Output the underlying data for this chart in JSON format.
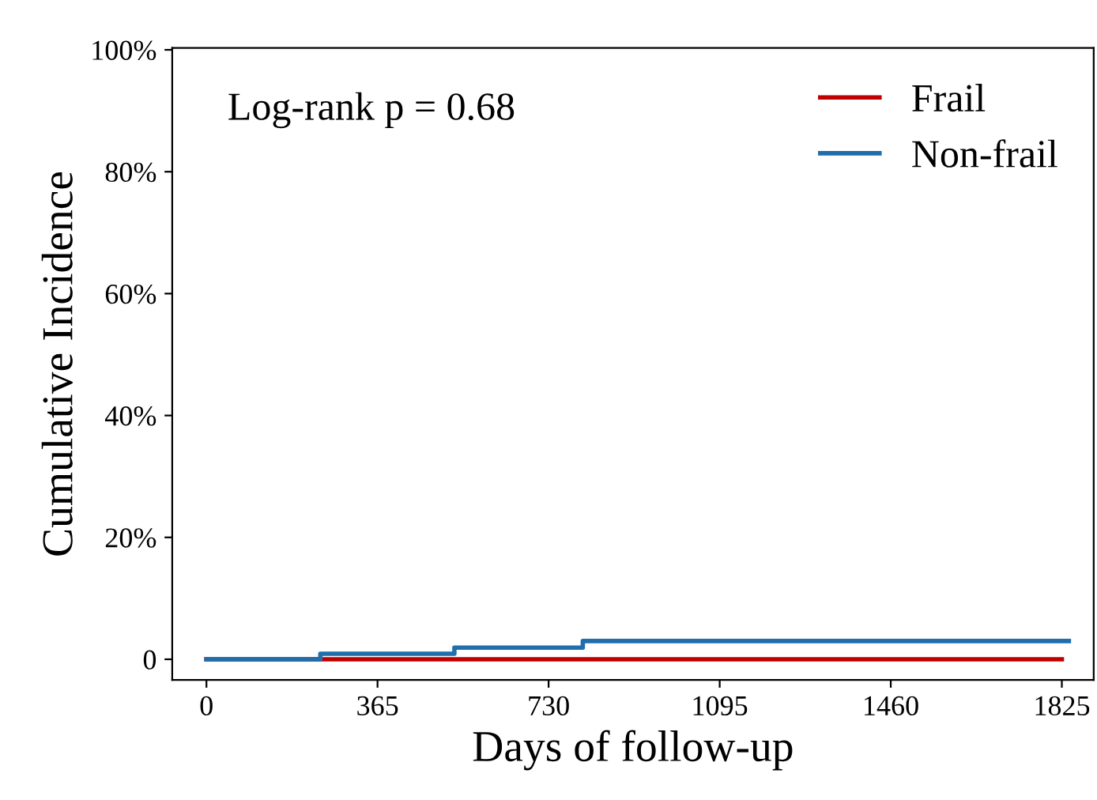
{
  "chart_data": {
    "type": "step",
    "xlabel": "Days of follow-up",
    "ylabel": "Cumulative Incidence",
    "series": [
      {
        "name": "Frail",
        "color": "#c00000",
        "x": [
          0,
          1825
        ],
        "values": [
          0,
          0
        ]
      },
      {
        "name": "Non-frail",
        "color": "#1f6fad",
        "x": [
          0,
          243,
          529,
          803,
          1840
        ],
        "values": [
          0,
          0.9,
          1.9,
          3.0,
          3.0
        ]
      }
    ],
    "xlim": [
      -73,
      1893
    ],
    "xticks": [
      0,
      365,
      730,
      1095,
      1460,
      1825
    ],
    "ylim": [
      -3.4,
      100.3
    ],
    "yticks": [
      0,
      {
        "value": 20,
        "label": "20%"
      },
      {
        "value": 40,
        "label": "40%"
      },
      {
        "value": 60,
        "label": "60%"
      },
      {
        "value": 80,
        "label": "80%"
      },
      {
        "value": 100,
        "label": "100%"
      }
    ],
    "annotations": [
      "Log-rank p = 0.68"
    ],
    "legend": "top right",
    "grid": false
  }
}
